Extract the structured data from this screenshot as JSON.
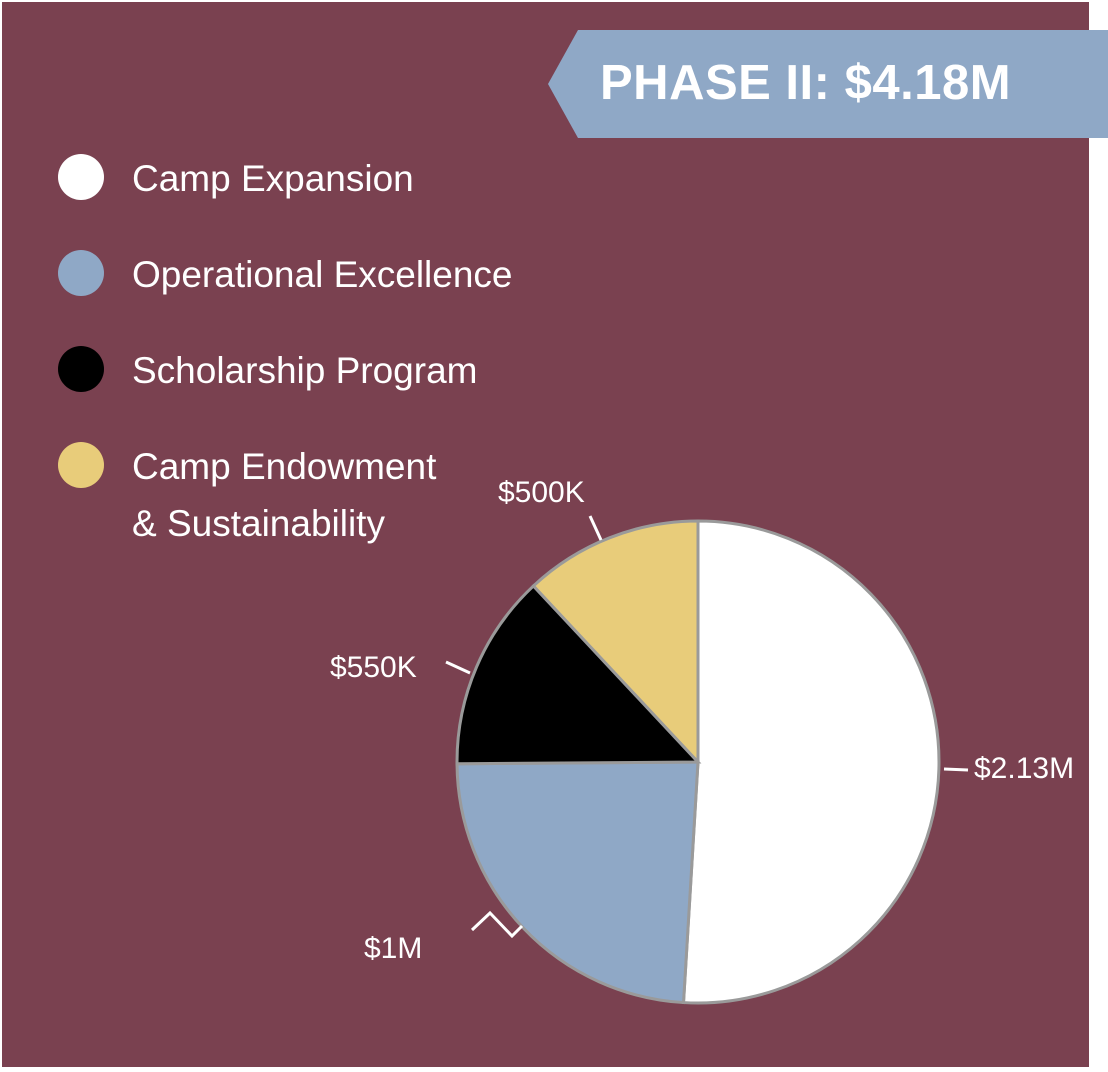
{
  "header": {
    "title": "PHASE II: $4.18M"
  },
  "colors": {
    "background": "#7a4150",
    "banner": "#8fa8c6",
    "text": "#ffffff",
    "slice_border": "#9a9a9a"
  },
  "legend": {
    "items": [
      {
        "label": "Camp Expansion",
        "color": "#ffffff"
      },
      {
        "label": "Operational Excellence",
        "color": "#8fa8c6"
      },
      {
        "label": "Scholarship Program",
        "color": "#000000"
      },
      {
        "label_line1": "Camp Endowment",
        "label_line2": "& Sustainability",
        "color": "#e8cc7a"
      }
    ]
  },
  "chart_data": {
    "type": "pie",
    "title": "PHASE II: $4.18M",
    "categories": [
      "Camp Expansion",
      "Operational Excellence",
      "Scholarship Program",
      "Camp Endowment & Sustainability"
    ],
    "values": [
      2130000,
      1000000,
      550000,
      500000
    ],
    "labels": [
      "$2.13M",
      "$1M",
      "$550K",
      "$500K"
    ],
    "colors": [
      "#ffffff",
      "#8fa8c6",
      "#000000",
      "#e8cc7a"
    ],
    "legend": "top-left"
  }
}
